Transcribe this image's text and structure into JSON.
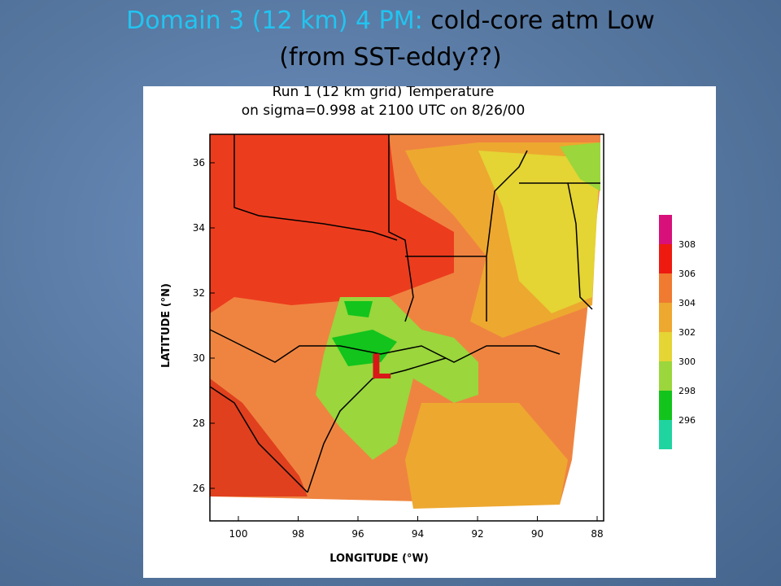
{
  "slide": {
    "title_highlight": "Domain 3 (12 km) 4 PM:",
    "title_rest": "cold-core atm Low",
    "title_line2": "(from SST-eddy??)"
  },
  "map": {
    "title_line1": "Run 1 (12 km grid) Temperature",
    "title_line2": "on sigma=0.998 at 2100 UTC on 8/26/00",
    "x_label": "LONGITUDE (°W)",
    "y_label": "LATITUDE (°N)",
    "x_ticks": [
      "100",
      "98",
      "96",
      "94",
      "92",
      "90",
      "88"
    ],
    "y_ticks": [
      "36",
      "34",
      "32",
      "30",
      "28",
      "26"
    ],
    "marker": "L"
  },
  "colorbar": {
    "labels": [
      "308",
      "306",
      "304",
      "302",
      "300",
      "298",
      "296"
    ]
  }
}
